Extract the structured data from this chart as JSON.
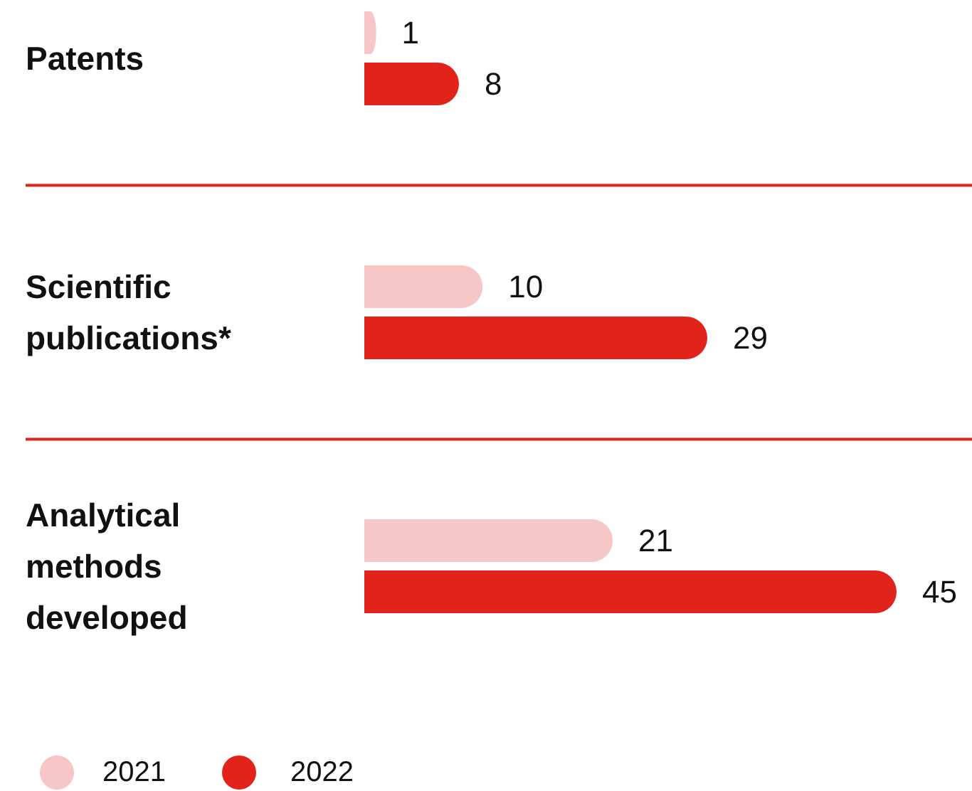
{
  "chart_data": {
    "type": "bar",
    "orientation": "horizontal",
    "categories": [
      "Patents",
      "Scientific publications*",
      "Analytical methods developed"
    ],
    "series": [
      {
        "name": "2021",
        "color": "#f6c7c6",
        "values": [
          1,
          10,
          21
        ]
      },
      {
        "name": "2022",
        "color": "#e2231a",
        "values": [
          8,
          29,
          45
        ]
      }
    ],
    "data_labels": true,
    "legend": "bottom left"
  }
}
